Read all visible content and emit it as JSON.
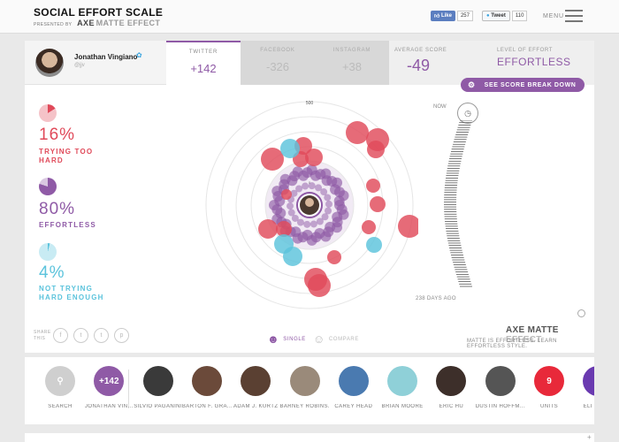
{
  "brand": {
    "title": "SOCIAL EFFORT SCALE",
    "presented_by": "PRESENTED BY",
    "axe": "AXE",
    "matte": "MATTE EFFECT"
  },
  "social": {
    "like_label": "Like",
    "like_count": "257",
    "tweet_label": "Tweet",
    "tweet_count": "110"
  },
  "menu": {
    "label": "MENU"
  },
  "profile": {
    "name": "Jonathan Vingiano",
    "handle": "@jjv"
  },
  "tabs": [
    {
      "label": "TWITTER",
      "value": "+142"
    },
    {
      "label": "FACEBOOK",
      "value": "-326"
    },
    {
      "label": "INSTAGRAM",
      "value": "+38"
    }
  ],
  "average": {
    "label": "AVERAGE SCORE",
    "value": "-49"
  },
  "effort": {
    "label": "LEVEL OF EFFORT",
    "value": "EFFORTLESS"
  },
  "score_button": {
    "label": "SEE SCORE BREAK DOWN"
  },
  "stats": [
    {
      "pct": "16%",
      "desc": "TRYING TOO HARD",
      "fraction": 0.16,
      "color": "#e04a5a"
    },
    {
      "pct": "80%",
      "desc": "EFFORTLESS",
      "fraction": 0.8,
      "color": "#8f5aa6"
    },
    {
      "pct": "4%",
      "desc": "NOT TRYING HARD ENOUGH",
      "fraction": 0.04,
      "color": "#5bc3dc"
    }
  ],
  "chart": {
    "outer_label": "500",
    "inner_label": "0"
  },
  "timeline": {
    "now": "NOW",
    "days": "238 DAYS AGO"
  },
  "share": {
    "label": "SHARE THIS",
    "icons": [
      "f",
      "t",
      "t",
      "p"
    ]
  },
  "modes": {
    "single": "SINGLE",
    "compare": "COMPARE"
  },
  "footer": {
    "axe": "AXE",
    "matte": "MATTE",
    "effect": "EFFECT",
    "tagline": "MATTE IS EFFORTLESS. LEARN EFFORTLESS STYLE."
  },
  "people": [
    {
      "name": "SEARCH",
      "badge": "",
      "color": "#c9c9c9"
    },
    {
      "name": "JONATHAN VIN...",
      "badge": "+142",
      "color": "#8f5aa6"
    },
    {
      "name": "SILVIO PAGANINI",
      "badge": "",
      "color": "#3a3a3a"
    },
    {
      "name": "BARTON F. GRA...",
      "badge": "",
      "color": "#6b4a3a"
    },
    {
      "name": "ADAM J. KURTZ",
      "badge": "",
      "color": "#5a4032"
    },
    {
      "name": "BARNEY ROBINS...",
      "badge": "",
      "color": "#9a8a7a"
    },
    {
      "name": "CAREY HEAD",
      "badge": "",
      "color": "#4a7ab0"
    },
    {
      "name": "BRIAN MOORE",
      "badge": "",
      "color": "#8fd0d8"
    },
    {
      "name": "ERIC HU",
      "badge": "",
      "color": "#3d2f2a"
    },
    {
      "name": "DUSTIN HOFFM...",
      "badge": "",
      "color": "#555555"
    },
    {
      "name": "UNITS",
      "badge": "9",
      "color": "#e8293a"
    },
    {
      "name": "ELI ROO...",
      "badge": "",
      "color": "#6a3ab0"
    }
  ]
}
